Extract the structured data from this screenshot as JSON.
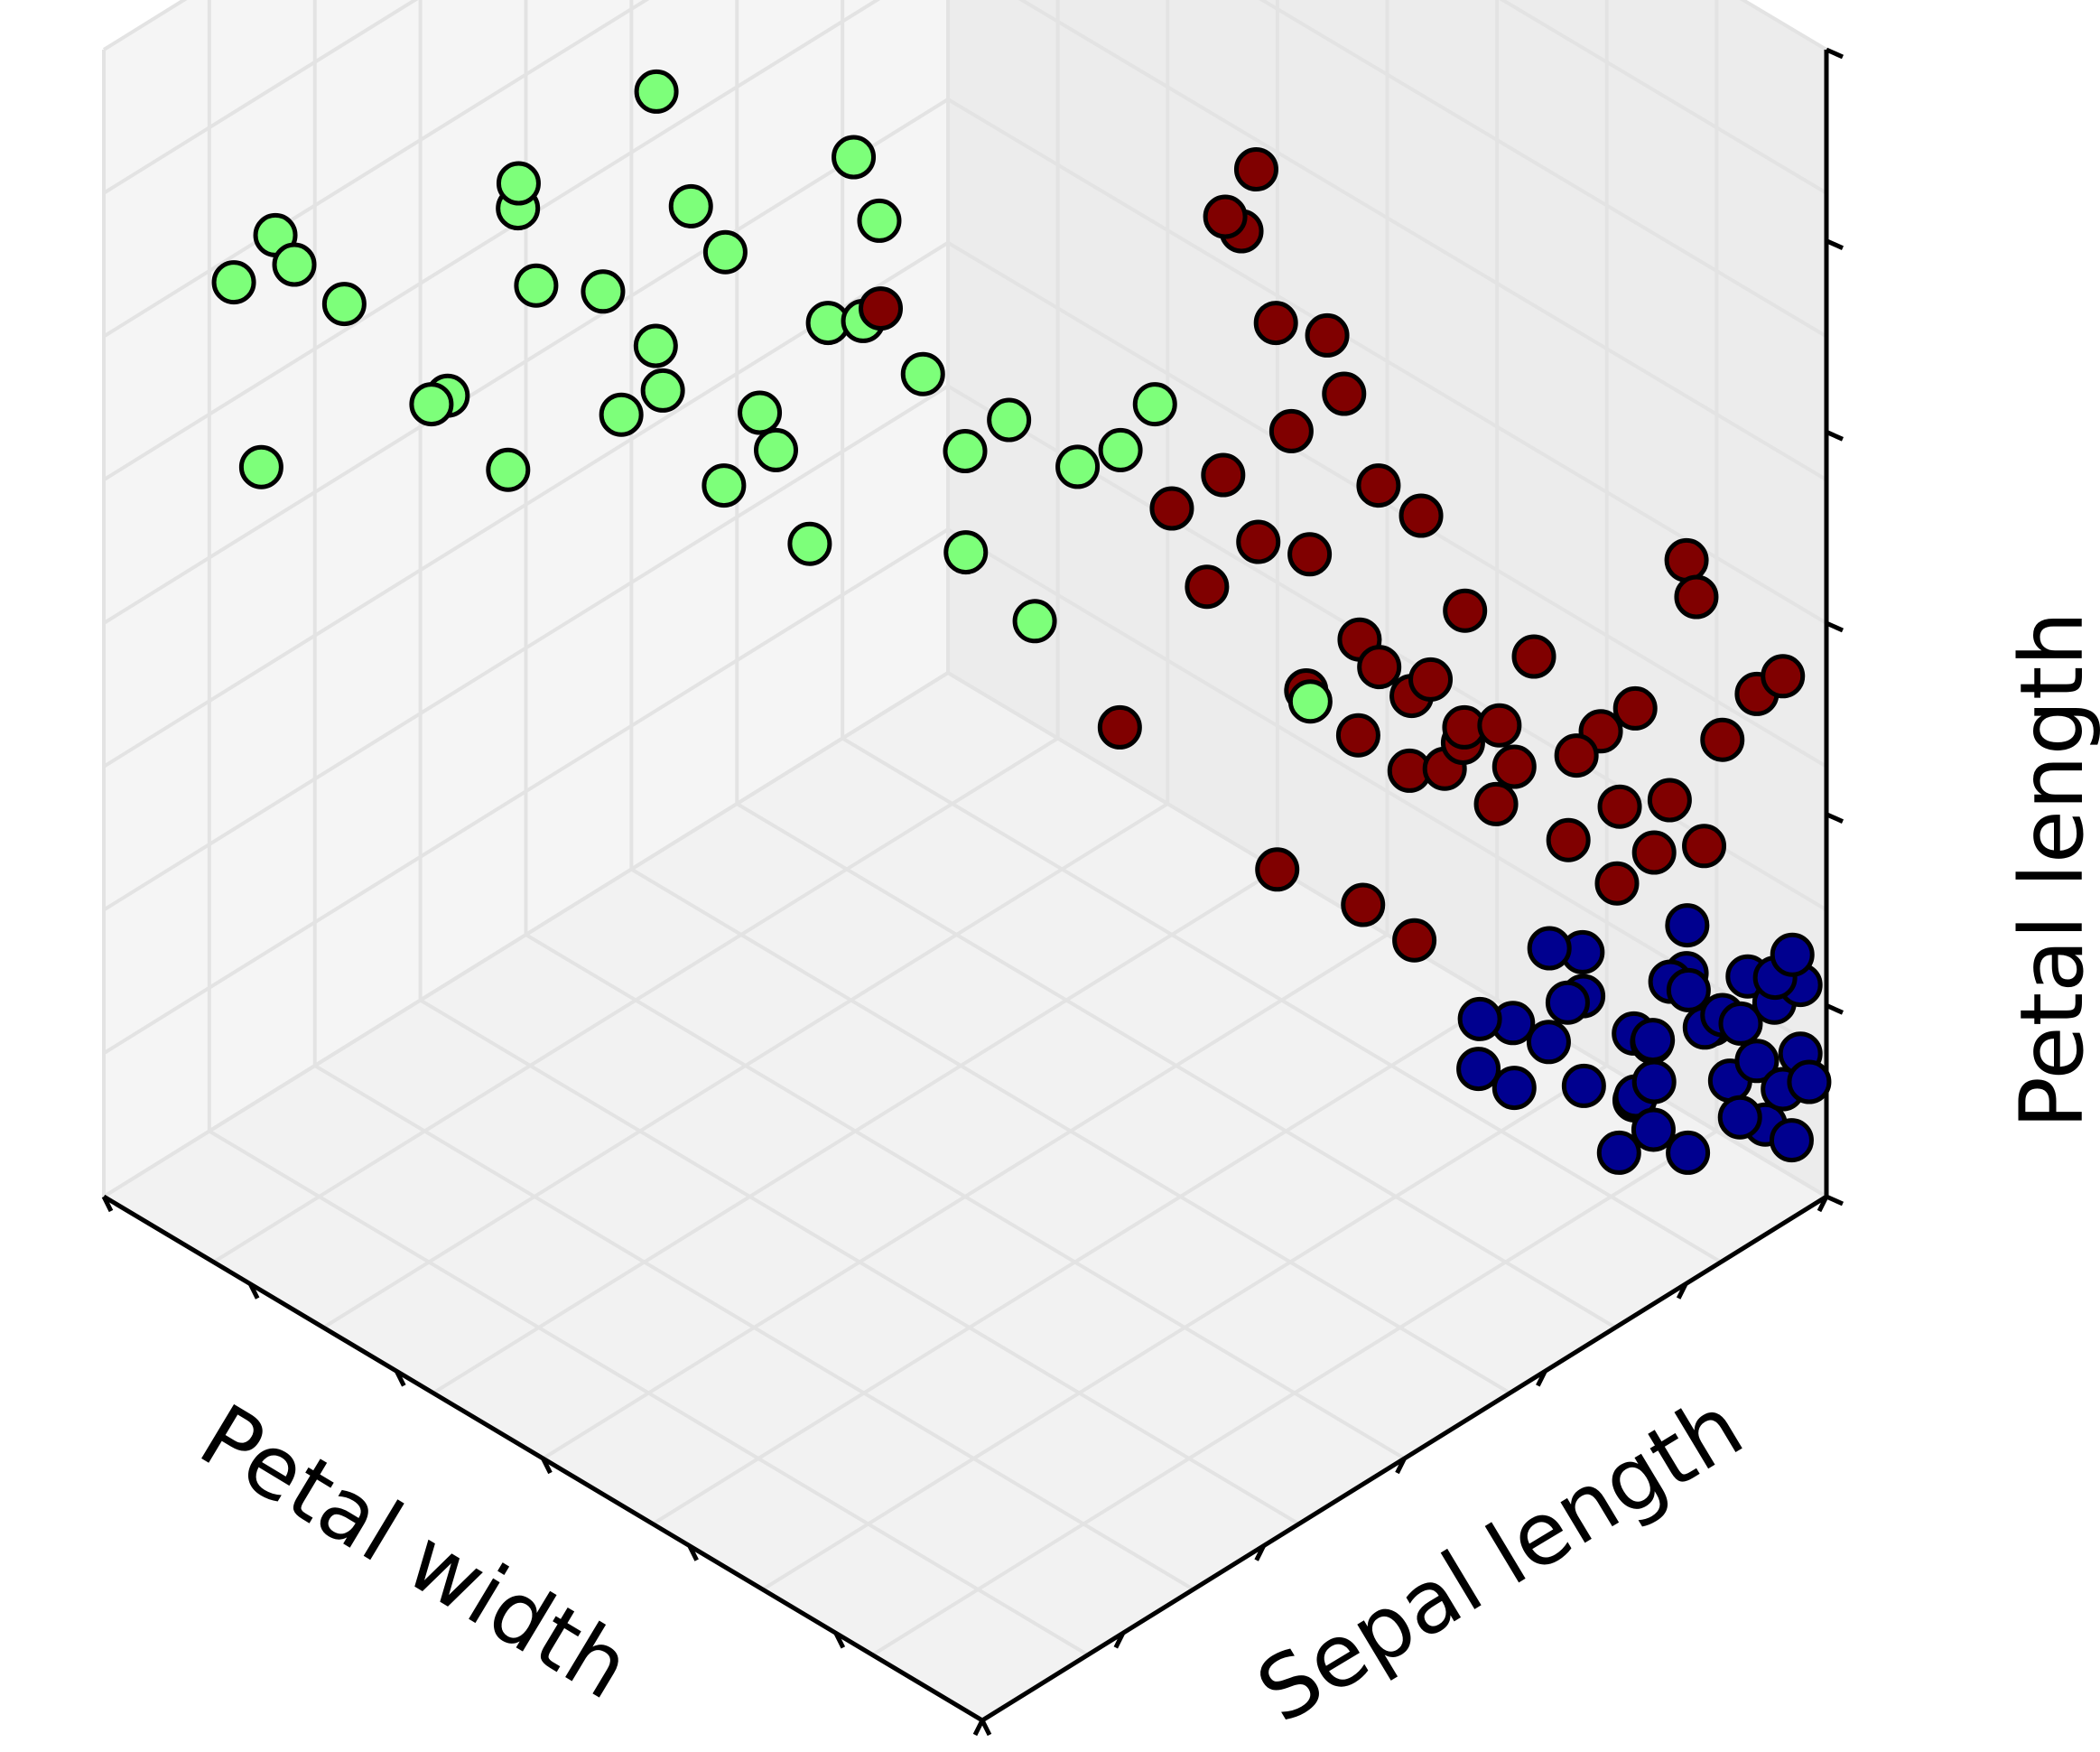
{
  "chart_data": {
    "type": "scatter",
    "projection": "3d",
    "xlabel": "Petal width",
    "ylabel": "Sepal length",
    "zlabel": "Petal length",
    "grid": true,
    "legend": "none",
    "colors": {
      "green": "#7dff7a",
      "red": "#800000",
      "blue": "#00008f"
    },
    "series": [
      {
        "color": "green",
        "points": [
          [
            0.08,
            0.12,
            0.82
          ],
          [
            0.1,
            0.05,
            0.82
          ],
          [
            0.14,
            0.08,
            0.84
          ],
          [
            0.12,
            0.16,
            0.76
          ],
          [
            0.16,
            0.02,
            0.7
          ],
          [
            0.18,
            0.22,
            0.68
          ],
          [
            0.2,
            0.18,
            0.7
          ],
          [
            0.22,
            0.25,
            0.62
          ],
          [
            0.26,
            0.22,
            0.88
          ],
          [
            0.28,
            0.2,
            0.92
          ],
          [
            0.3,
            0.2,
            0.84
          ],
          [
            0.28,
            0.3,
            0.78
          ],
          [
            0.32,
            0.28,
            0.7
          ],
          [
            0.3,
            0.35,
            0.68
          ],
          [
            0.34,
            0.3,
            0.76
          ],
          [
            0.36,
            0.28,
            1.0
          ],
          [
            0.38,
            0.3,
            0.9
          ],
          [
            0.4,
            0.32,
            0.86
          ],
          [
            0.36,
            0.36,
            0.62
          ],
          [
            0.4,
            0.38,
            0.66
          ],
          [
            0.42,
            0.34,
            0.72
          ],
          [
            0.44,
            0.4,
            0.78
          ],
          [
            0.45,
            0.42,
            0.92
          ],
          [
            0.46,
            0.44,
            0.86
          ],
          [
            0.48,
            0.4,
            0.8
          ],
          [
            0.5,
            0.45,
            0.74
          ],
          [
            0.5,
            0.5,
            0.65
          ],
          [
            0.52,
            0.48,
            0.58
          ],
          [
            0.55,
            0.5,
            0.7
          ],
          [
            0.56,
            0.52,
            0.52
          ],
          [
            0.58,
            0.55,
            0.65
          ],
          [
            0.6,
            0.58,
            0.66
          ],
          [
            0.62,
            0.6,
            0.7
          ],
          [
            0.4,
            0.42,
            0.56
          ],
          [
            0.72,
            0.68,
            0.45
          ]
        ]
      },
      {
        "color": "red",
        "points": [
          [
            0.62,
            0.62,
            0.6
          ],
          [
            0.64,
            0.66,
            0.62
          ],
          [
            0.66,
            0.62,
            0.55
          ],
          [
            0.68,
            0.66,
            0.58
          ],
          [
            0.7,
            0.7,
            0.56
          ],
          [
            0.7,
            0.66,
            0.78
          ],
          [
            0.72,
            0.7,
            0.76
          ],
          [
            0.72,
            0.72,
            0.7
          ],
          [
            0.74,
            0.74,
            0.62
          ],
          [
            0.75,
            0.78,
            0.58
          ],
          [
            0.76,
            0.72,
            0.48
          ],
          [
            0.78,
            0.76,
            0.46
          ],
          [
            0.78,
            0.8,
            0.4
          ],
          [
            0.8,
            0.78,
            0.52
          ],
          [
            0.82,
            0.8,
            0.42
          ],
          [
            0.84,
            0.82,
            0.48
          ],
          [
            0.85,
            0.86,
            0.38
          ],
          [
            0.86,
            0.84,
            0.32
          ],
          [
            0.88,
            0.88,
            0.34
          ],
          [
            0.9,
            0.9,
            0.3
          ],
          [
            0.62,
            0.72,
            0.85
          ],
          [
            0.66,
            0.72,
            0.64
          ],
          [
            0.68,
            0.78,
            0.44
          ],
          [
            0.72,
            0.8,
            0.4
          ],
          [
            0.74,
            0.84,
            0.35
          ],
          [
            0.76,
            0.88,
            0.32
          ],
          [
            0.6,
            0.8,
            0.35
          ],
          [
            0.64,
            0.82,
            0.32
          ],
          [
            0.66,
            0.86,
            0.28
          ],
          [
            0.7,
            0.86,
            0.3
          ],
          [
            0.72,
            0.9,
            0.26
          ],
          [
            0.58,
            0.6,
            0.4
          ],
          [
            0.82,
            0.92,
            0.36
          ],
          [
            0.84,
            0.94,
            0.38
          ],
          [
            0.86,
            0.96,
            0.3
          ],
          [
            0.88,
            0.98,
            0.26
          ],
          [
            0.92,
            0.96,
            0.38
          ],
          [
            0.94,
            0.98,
            0.42
          ],
          [
            0.96,
            0.99,
            0.44
          ],
          [
            0.8,
            0.96,
            0.2
          ],
          [
            0.7,
            0.6,
            0.9
          ],
          [
            0.68,
            0.64,
            0.86
          ],
          [
            0.9,
            0.95,
            0.5
          ],
          [
            0.86,
            0.98,
            0.5
          ],
          [
            0.74,
            0.62,
            0.34
          ],
          [
            0.78,
            0.68,
            0.3
          ],
          [
            0.8,
            0.72,
            0.26
          ],
          [
            0.5,
            0.4,
            0.82
          ]
        ]
      },
      {
        "color": "blue",
        "points": [
          [
            0.86,
            0.94,
            0.1
          ],
          [
            0.88,
            0.94,
            0.16
          ],
          [
            0.9,
            0.96,
            0.12
          ],
          [
            0.92,
            0.96,
            0.14
          ],
          [
            0.94,
            0.98,
            0.1
          ],
          [
            0.96,
            0.98,
            0.16
          ],
          [
            0.98,
            0.99,
            0.12
          ],
          [
            0.84,
            0.96,
            0.08
          ],
          [
            0.86,
            0.98,
            0.14
          ],
          [
            0.88,
            0.99,
            0.1
          ],
          [
            0.9,
            0.99,
            0.06
          ],
          [
            0.92,
            0.99,
            0.16
          ],
          [
            0.94,
            0.99,
            0.04
          ],
          [
            0.96,
            0.99,
            0.08
          ],
          [
            0.98,
            0.99,
            0.18
          ],
          [
            0.82,
            0.9,
            0.06
          ],
          [
            0.8,
            0.92,
            0.12
          ],
          [
            0.78,
            0.9,
            0.08
          ],
          [
            0.76,
            0.88,
            0.04
          ],
          [
            0.74,
            0.86,
            0.1
          ],
          [
            0.82,
            0.96,
            0.02
          ],
          [
            0.86,
            0.9,
            0.02
          ],
          [
            0.88,
            0.92,
            0.04
          ],
          [
            0.9,
            0.94,
            0.02
          ],
          [
            0.96,
            0.94,
            0.16
          ],
          [
            0.98,
            0.96,
            0.2
          ],
          [
            0.99,
            0.97,
            0.22
          ],
          [
            0.92,
            0.92,
            0.18
          ],
          [
            0.84,
            0.86,
            0.16
          ],
          [
            0.8,
            0.88,
            0.18
          ],
          [
            0.94,
            0.96,
            0.06
          ],
          [
            0.97,
            0.99,
            0.04
          ],
          [
            0.7,
            0.9,
            0.02
          ],
          [
            0.72,
            0.92,
            0.06
          ],
          [
            0.88,
            0.96,
            0.2
          ],
          [
            0.99,
            0.99,
            0.1
          ],
          [
            0.78,
            0.94,
            0.14
          ],
          [
            0.9,
            0.9,
            0.1
          ],
          [
            0.86,
            0.92,
            0.06
          ],
          [
            0.8,
            0.98,
            0.06
          ]
        ]
      }
    ]
  }
}
